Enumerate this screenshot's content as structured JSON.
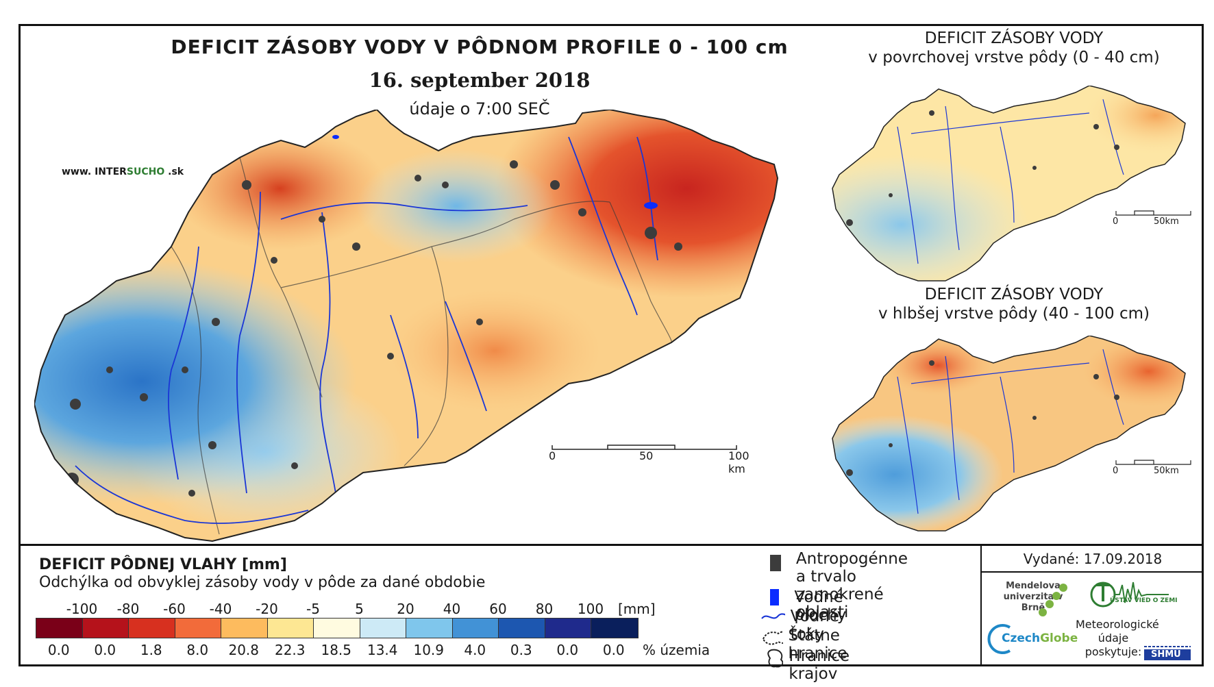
{
  "header": {
    "title": "DEFICIT ZÁSOBY VODY V PÔDNOM PROFILE 0 - 100 cm",
    "date": "16. september 2018",
    "time": "údaje o 7:00 SEČ",
    "website_prefix": "www. INTER",
    "website_accent": "SUCHO",
    "website_suffix": " .sk"
  },
  "side_panels": [
    {
      "title_line1": "DEFICIT ZÁSOBY VODY",
      "title_line2": "v povrchovej vrstve pôdy (0 - 40 cm)",
      "scale": {
        "start": "0",
        "end": "50km"
      }
    },
    {
      "title_line1": "DEFICIT ZÁSOBY VODY",
      "title_line2": "v hlbšej vrstve pôdy (40 - 100 cm)",
      "scale": {
        "start": "0",
        "end": "50km"
      }
    }
  ],
  "main_scale": {
    "start": "0",
    "mid": "50",
    "end": "100 km"
  },
  "legend": {
    "title": "DEFICIT PÔDNEJ VLAHY [mm]",
    "subtitle": "Odchýlka od obvyklej zásoby vody v pôde za dané obdobie",
    "unit": "[mm]",
    "pct_unit": "% územia",
    "ticks": [
      "-100",
      "-80",
      "-60",
      "-40",
      "-20",
      "-5",
      "5",
      "20",
      "40",
      "60",
      "80",
      "100"
    ],
    "colors": [
      "#7a0018",
      "#b5121b",
      "#d7301f",
      "#f26b3a",
      "#fdbb5e",
      "#fde793",
      "#fffbe0",
      "#cdeaf6",
      "#7fc6ec",
      "#4292d6",
      "#1d57b0",
      "#1f2a8c",
      "#0a1f5c"
    ],
    "percentages": [
      "0.0",
      "0.0",
      "1.8",
      "8.0",
      "20.8",
      "22.3",
      "18.5",
      "13.4",
      "10.9",
      "4.0",
      "0.3",
      "0.0",
      "0.0"
    ]
  },
  "symbols": {
    "urban": "Antropogénne a trvalo",
    "urban2": "zamokrené oblasti",
    "water_bodies": "Vodné plochy",
    "rivers": "Vodné toky",
    "state_border": "Štátne hranice",
    "region_border": "Hranice krajov"
  },
  "issued": "Vydané: 17.09.2018",
  "logos": {
    "mendel": "Mendelova univerzita v Brně",
    "czechglobe_a": "Czech",
    "czechglobe_b": "Globe",
    "ustav": "ÚSTAV VIED O ZEMI",
    "meteo": "Meteorologické údaje poskytuje:",
    "shmu": "SHMÚ"
  }
}
